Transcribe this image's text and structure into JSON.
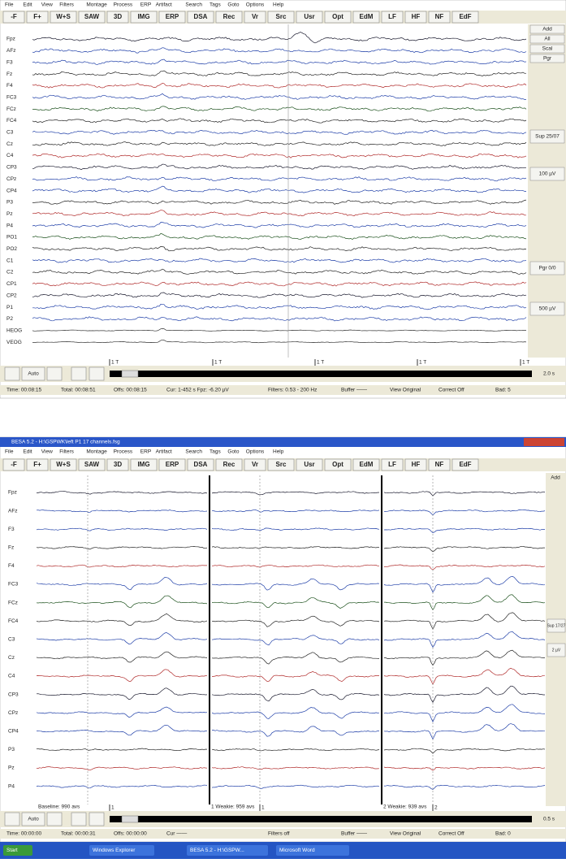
{
  "top": {
    "menu": [
      "File",
      "Edit",
      "View",
      "Filters",
      "Montage",
      "Process",
      "ERP",
      "Artifact",
      "Search",
      "Tags",
      "Goto",
      "Options",
      "Help"
    ],
    "toolbar": [
      "-F",
      "F+",
      "W+S",
      "SAW",
      "3D",
      "IMG",
      "ERP",
      "DSA",
      "Rec",
      "Vr",
      "Src",
      "Usr",
      "Opt",
      "EdM",
      "LF",
      "HF",
      "NF",
      "EdF"
    ],
    "channels": [
      "Fpz",
      "AFz",
      "F3",
      "Fz",
      "F4",
      "FC3",
      "FCz",
      "FC4",
      "C3",
      "Cz",
      "C4",
      "CP3",
      "CPz",
      "CP4",
      "P3",
      "Pz",
      "P4",
      "PO1",
      "PO2",
      "C1",
      "C2",
      "CP1",
      "CP2",
      "P1",
      "P2",
      "HEOG",
      "VEOG"
    ],
    "side_buttons": [
      "Add",
      "All",
      "Scal",
      "Pgr"
    ],
    "side_labels": [
      "Sup 25/07",
      "100 µV",
      "Pgr 0/0",
      "500 µV"
    ],
    "nav": {
      "auto": "Auto",
      "markers": [
        "1 T",
        "1 T",
        "1 T",
        "1 T",
        "1 T"
      ],
      "scale": "2.0 s"
    },
    "status": [
      "Time: 00:08:15",
      "Total: 00:08:51",
      "Offs: 00:08:15",
      "Cur: 1-452 s  Fpz: -6.20 µV",
      "Filters: 0.53 - 200 Hz",
      "Buffer ——",
      "View Original",
      "Correct Off",
      "Bad: 5"
    ]
  },
  "bottom": {
    "title": "BESA 5.2 - H:\\GSPWK\\left P1 17 channels.fsg",
    "menu": [
      "File",
      "Edit",
      "View",
      "Filters",
      "Montage",
      "Process",
      "ERP",
      "Artifact",
      "Search",
      "Tags",
      "Goto",
      "Options",
      "Help"
    ],
    "toolbar": [
      "-F",
      "F+",
      "W+S",
      "SAW",
      "3D",
      "IMG",
      "ERP",
      "DSA",
      "Rec",
      "Vr",
      "Src",
      "Usr",
      "Opt",
      "EdM",
      "LF",
      "HF",
      "NF",
      "EdF"
    ],
    "channels": [
      "Fpz",
      "AFz",
      "F3",
      "Fz",
      "F4",
      "FC3",
      "FCz",
      "FC4",
      "C3",
      "Cz",
      "C4",
      "CP3",
      "CPz",
      "CP4",
      "P3",
      "Pz",
      "P4"
    ],
    "side_buttons": [
      "Add"
    ],
    "side_labels": [
      "Sup 17/27",
      "2 µV"
    ],
    "epoch_labels": [
      "Baseline: 990 avs",
      "1 Weakie: 959 avs",
      "2 Weakie: 939 avs"
    ],
    "nav": {
      "auto": "Auto",
      "markers": [
        "1",
        "1",
        "2"
      ],
      "scale": "0.5 s"
    },
    "status": [
      "Time: 00:00:00",
      "Total: 00:00:31",
      "Offs: 00:00:00",
      "Cur ——",
      "Filters off",
      "Buffer ——",
      "View Original",
      "Correct Off",
      "Bad: 0"
    ],
    "taskbar": [
      "Start",
      "Windows Explorer",
      "BESA 5.2 - H:\\GSPW...",
      "Microsoft Word"
    ]
  }
}
